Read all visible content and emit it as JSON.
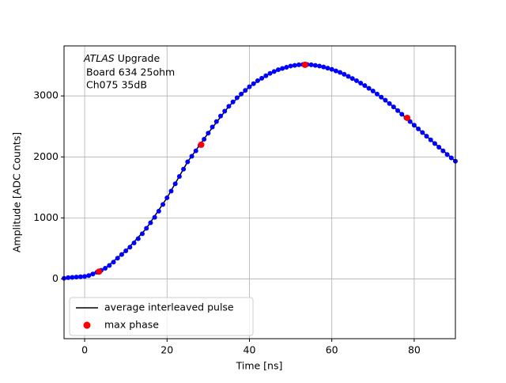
{
  "chart_data": {
    "type": "scatter",
    "xlabel": "Time [ns]",
    "ylabel": "Amplitude [ADC Counts]",
    "annotation": [
      "ATLAS",
      "Upgrade",
      "Board 634 25ohm",
      "Ch075 35dB"
    ],
    "xlim": [
      -5,
      90
    ],
    "ylim": [
      -980,
      3820
    ],
    "xticks": [
      0,
      20,
      40,
      60,
      80
    ],
    "yticks": [
      0,
      1000,
      2000,
      3000
    ],
    "grid": true,
    "legend": "lower left",
    "series": [
      {
        "name": "average interleaved pulse",
        "style": "line",
        "color": "#000000",
        "x": [
          -5,
          0,
          5,
          10,
          15,
          20,
          25,
          30,
          35,
          40,
          45,
          50,
          55,
          60,
          65,
          70,
          75,
          80,
          85,
          90
        ],
        "values": [
          10,
          40,
          175,
          460,
          830,
          1330,
          1920,
          2390,
          2830,
          3150,
          3370,
          3490,
          3510,
          3435,
          3285,
          3080,
          2820,
          2520,
          2220,
          1930
        ]
      },
      {
        "style": "marker",
        "color": "#0000ff",
        "x": [
          -5,
          -4,
          -3,
          -2,
          -1,
          0,
          1,
          2,
          3,
          4,
          5,
          6,
          7,
          8,
          9,
          10,
          11,
          12,
          13,
          14,
          15,
          16,
          17,
          18,
          19,
          20,
          21,
          22,
          23,
          24,
          25,
          26,
          27,
          28,
          29,
          30,
          31,
          32,
          33,
          34,
          35,
          36,
          37,
          38,
          39,
          40,
          41,
          42,
          43,
          44,
          45,
          46,
          47,
          48,
          49,
          50,
          51,
          52,
          53,
          54,
          55,
          56,
          57,
          58,
          59,
          60,
          61,
          62,
          63,
          64,
          65,
          66,
          67,
          68,
          69,
          70,
          71,
          72,
          73,
          74,
          75,
          76,
          77,
          78,
          79,
          80,
          81,
          82,
          83,
          84,
          85,
          86,
          87,
          88,
          89,
          90
        ],
        "values": [
          10,
          20,
          25,
          30,
          35,
          40,
          55,
          80,
          110,
          140,
          175,
          220,
          275,
          340,
          400,
          460,
          520,
          590,
          660,
          740,
          830,
          920,
          1010,
          1110,
          1220,
          1330,
          1440,
          1560,
          1680,
          1800,
          1920,
          2010,
          2100,
          2190,
          2290,
          2390,
          2490,
          2580,
          2670,
          2750,
          2830,
          2900,
          2970,
          3030,
          3090,
          3150,
          3200,
          3250,
          3290,
          3330,
          3370,
          3400,
          3430,
          3450,
          3470,
          3490,
          3500,
          3510,
          3515,
          3515,
          3510,
          3500,
          3490,
          3475,
          3455,
          3435,
          3410,
          3385,
          3355,
          3320,
          3285,
          3250,
          3210,
          3170,
          3125,
          3080,
          3030,
          2980,
          2930,
          2875,
          2820,
          2760,
          2700,
          2640,
          2580,
          2520,
          2460,
          2400,
          2340,
          2280,
          2220,
          2160,
          2100,
          2040,
          1985,
          1930
        ]
      },
      {
        "name": "max phase",
        "style": "marker",
        "color": "#ff0000",
        "x": [
          3.5,
          28.3,
          53.5,
          78.3
        ],
        "values": [
          120,
          2200,
          3510,
          2640
        ]
      }
    ]
  }
}
